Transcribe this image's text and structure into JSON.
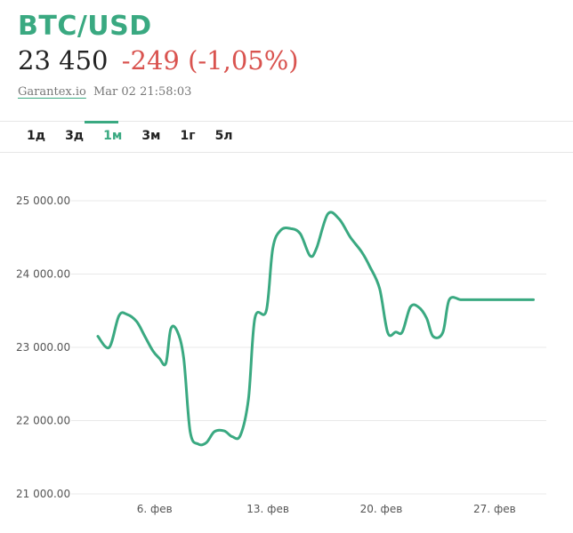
{
  "header": {
    "pair": "BTC/USD",
    "price": "23 450",
    "change": "-249 (-1,05%)",
    "source": "Garantex.io",
    "timestamp": "Mar 02 21:58:03"
  },
  "tabs": [
    {
      "label": "1д",
      "active": false
    },
    {
      "label": "3д",
      "active": false
    },
    {
      "label": "1м",
      "active": true
    },
    {
      "label": "3м",
      "active": false
    },
    {
      "label": "1г",
      "active": false
    },
    {
      "label": "5л",
      "active": false
    }
  ],
  "colors": {
    "line": "#3aa981",
    "negative": "#d9534f",
    "grid": "#e8e8e8"
  },
  "chart_data": {
    "type": "line",
    "ylim": [
      21000,
      25000
    ],
    "y_ticks": [
      {
        "value": 25000,
        "label": "25 000.00"
      },
      {
        "value": 24000,
        "label": "24 000.00"
      },
      {
        "value": 23000,
        "label": "23 000.00"
      },
      {
        "value": 22000,
        "label": "22 000.00"
      },
      {
        "value": 21000,
        "label": "21 000.00"
      }
    ],
    "x_ticks": [
      {
        "value": 6,
        "label": "6. фев"
      },
      {
        "value": 13,
        "label": "13. фев"
      },
      {
        "value": 20,
        "label": "20. фев"
      },
      {
        "value": 27,
        "label": "27. фев"
      }
    ],
    "xlim": [
      1.4,
      29.7
    ],
    "x": [
      2.5,
      3.2,
      3.8,
      4.3,
      4.9,
      5.4,
      5.9,
      6.3,
      6.7,
      7.0,
      7.4,
      7.8,
      8.2,
      8.7,
      9.2,
      9.7,
      10.3,
      10.8,
      11.3,
      11.8,
      12.2,
      12.9,
      13.3,
      13.8,
      14.4,
      15.0,
      15.6,
      16.0,
      16.7,
      17.4,
      18.1,
      18.8,
      19.3,
      19.9,
      20.4,
      20.9,
      21.3,
      21.8,
      22.3,
      22.8,
      23.2,
      23.8,
      24.2,
      24.9,
      25.3,
      26.0,
      26.6,
      27.1,
      27.5,
      28.1,
      28.6,
      29.0,
      29.4,
      29.8,
      30.3,
      30.9
    ],
    "y": [
      23150,
      23000,
      23430,
      23450,
      23350,
      23150,
      22950,
      22850,
      22780,
      23250,
      23220,
      22850,
      21850,
      21680,
      21700,
      21850,
      21860,
      21780,
      21800,
      22300,
      23400,
      23500,
      24350,
      24600,
      24620,
      24550,
      24250,
      24350,
      24820,
      24750,
      24500,
      24300,
      24100,
      23800,
      23200,
      23210,
      23210,
      23550,
      23550,
      23400,
      23150,
      23200,
      23650,
      23650,
      23650,
      23650,
      23650,
      23650,
      23650,
      23650,
      23650,
      23650,
      23650,
      23650,
      23650,
      23650
    ],
    "grid": true
  }
}
